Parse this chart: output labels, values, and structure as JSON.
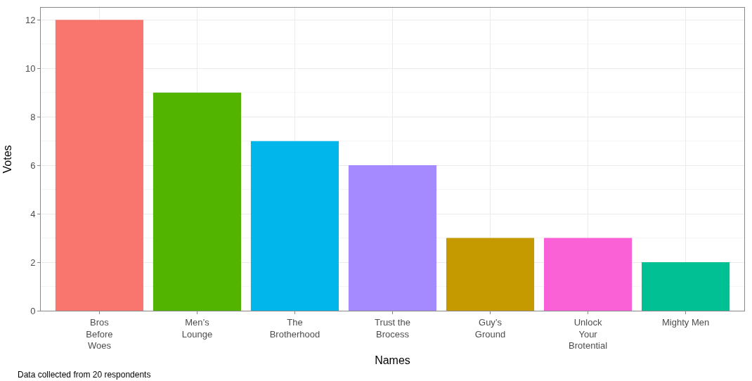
{
  "chart_data": {
    "type": "bar",
    "xlabel": "Names",
    "ylabel": "Votes",
    "categories": [
      "Bros\nBefore\nWoes",
      "Men’s\nLounge",
      "The\nBrotherhood",
      "Trust the\nBrocess",
      "Guy’s\nGround",
      "Unlock\nYour\nBrotential",
      "Mighty Men"
    ],
    "values": [
      12,
      9,
      7,
      6,
      3,
      3,
      2
    ],
    "colors": [
      "#f8766d",
      "#53b400",
      "#00b6eb",
      "#a58aff",
      "#c49a00",
      "#fb61d7",
      "#00c094"
    ],
    "ylim": [
      0,
      12.5
    ],
    "yticks": [
      0,
      2,
      4,
      6,
      8,
      10,
      12
    ],
    "grid": true,
    "annotations": [
      "Data collected from 20 respondents"
    ]
  }
}
